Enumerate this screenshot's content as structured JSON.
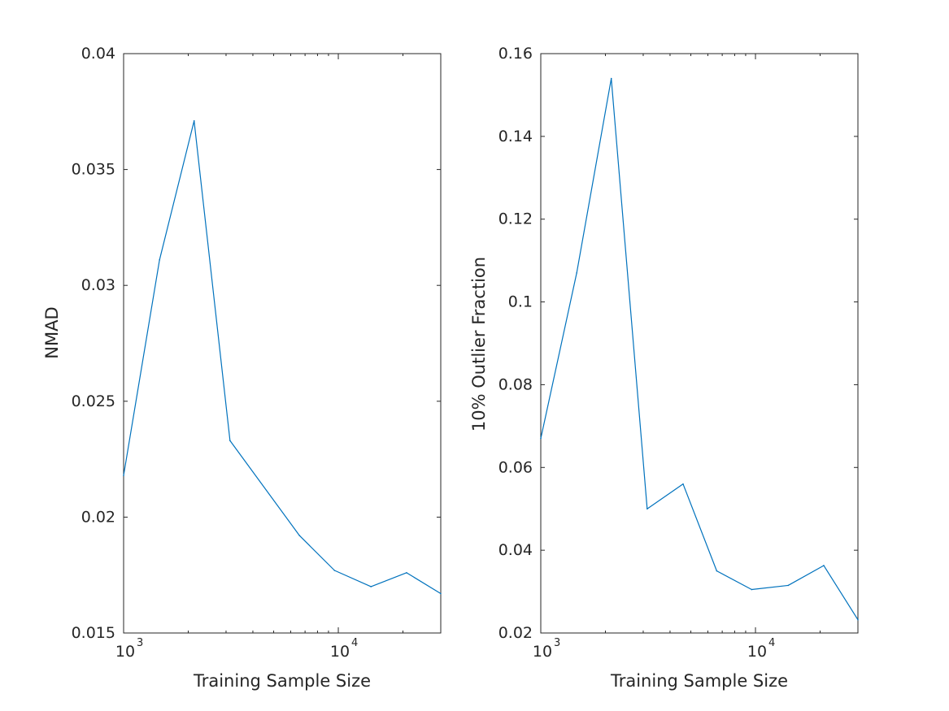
{
  "chart_data": [
    {
      "type": "line",
      "xscale": "log",
      "xlim": [
        1000,
        30000
      ],
      "ylim": [
        0.015,
        0.04
      ],
      "xlabel": "Training Sample Size",
      "ylabel": "NMAD",
      "xticks": [
        {
          "value": 1000,
          "base": "10",
          "exp": "3"
        },
        {
          "value": 10000,
          "base": "10",
          "exp": "4"
        }
      ],
      "yticks": [
        {
          "value": 0.015,
          "label": "0.015"
        },
        {
          "value": 0.02,
          "label": "0.02"
        },
        {
          "value": 0.025,
          "label": "0.025"
        },
        {
          "value": 0.03,
          "label": "0.03"
        },
        {
          "value": 0.035,
          "label": "0.035"
        },
        {
          "value": 0.04,
          "label": "0.04"
        }
      ],
      "series": [
        {
          "color": "#0072bd",
          "x": [
            1000,
            1470,
            2130,
            3130,
            6600,
            9600,
            14200,
            20800,
            30000
          ],
          "y": [
            0.0218,
            0.0311,
            0.0371,
            0.0233,
            0.0192,
            0.0177,
            0.017,
            0.0176,
            0.0167
          ]
        }
      ]
    },
    {
      "type": "line",
      "xscale": "log",
      "xlim": [
        1000,
        30000
      ],
      "ylim": [
        0.02,
        0.16
      ],
      "xlabel": "Training Sample Size",
      "ylabel": "10% Outlier Fraction",
      "xticks": [
        {
          "value": 1000,
          "base": "10",
          "exp": "3"
        },
        {
          "value": 10000,
          "base": "10",
          "exp": "4"
        }
      ],
      "yticks": [
        {
          "value": 0.02,
          "label": "0.02"
        },
        {
          "value": 0.04,
          "label": "0.04"
        },
        {
          "value": 0.06,
          "label": "0.06"
        },
        {
          "value": 0.08,
          "label": "0.08"
        },
        {
          "value": 0.1,
          "label": "0.1"
        },
        {
          "value": 0.12,
          "label": "0.12"
        },
        {
          "value": 0.14,
          "label": "0.14"
        },
        {
          "value": 0.16,
          "label": "0.16"
        }
      ],
      "series": [
        {
          "color": "#0072bd",
          "x": [
            1000,
            1470,
            2130,
            3130,
            4600,
            6600,
            9600,
            14200,
            20800,
            30000
          ],
          "y": [
            0.067,
            0.107,
            0.154,
            0.05,
            0.056,
            0.035,
            0.0305,
            0.0315,
            0.0363,
            0.0232
          ]
        }
      ]
    }
  ]
}
